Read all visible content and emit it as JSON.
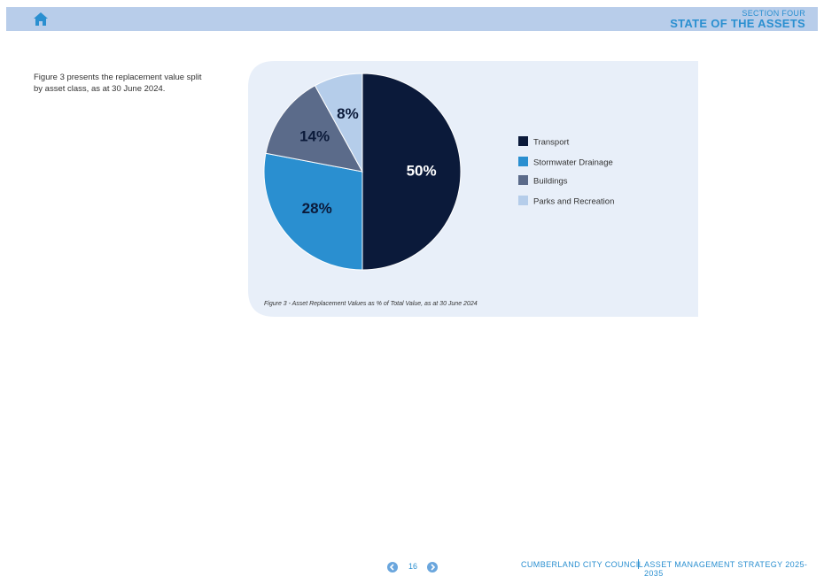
{
  "header": {
    "kicker": "SECTION FOUR",
    "title": "STATE OF THE ASSETS"
  },
  "body": {
    "text": "Figure 3 presents the replacement value split by asset class, as at 30 June 2024."
  },
  "chart_data": {
    "type": "pie",
    "categories": [
      "Transport",
      "Stormwater Drainage",
      "Buildings",
      "Parks and Recreation"
    ],
    "values": [
      50,
      28,
      14,
      8
    ],
    "value_labels": [
      "50%",
      "28%",
      "14%",
      "8%"
    ],
    "colors": [
      "#0b1a3a",
      "#2a8fd0",
      "#5b6b8a",
      "#b5cdea"
    ],
    "caption": "Figure 3 - Asset Replacement Values as % of Total Value, as at 30 June 2024"
  },
  "footer": {
    "page": "16",
    "organisation": "CUMBERLAND CITY COUNCIL",
    "document": "ASSET MANAGEMENT STRATEGY 2025-2035"
  }
}
